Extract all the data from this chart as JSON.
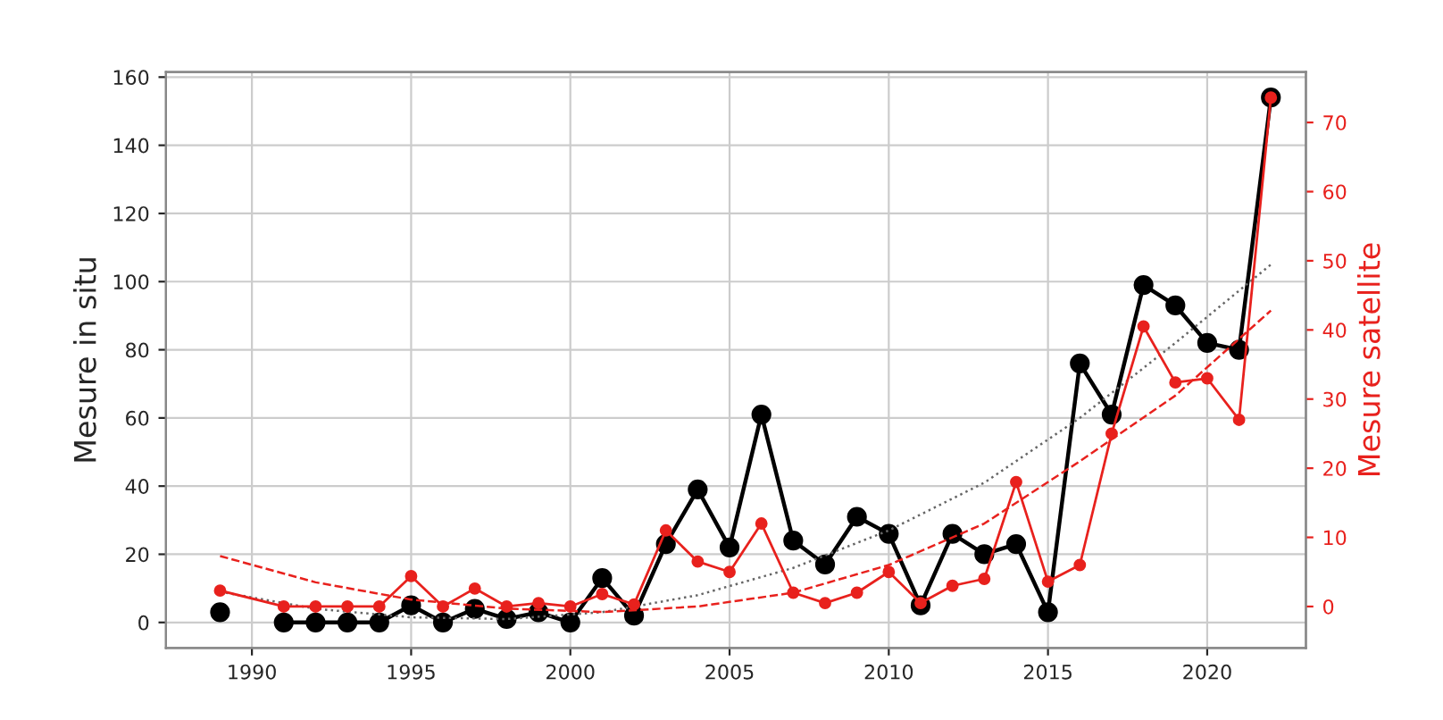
{
  "chart_data": {
    "type": "line",
    "ylabel": "Mesure in situ",
    "y2label": "Mesure satellite",
    "xlim": [
      1987.3,
      2023.1
    ],
    "xticks": [
      1990,
      1995,
      2000,
      2005,
      2010,
      2015,
      2020
    ],
    "ylim": [
      -7.5,
      161.5
    ],
    "yticks": [
      0,
      20,
      40,
      60,
      80,
      100,
      120,
      140,
      160
    ],
    "y2lim": [
      -6,
      77.3
    ],
    "y2ticks": [
      0,
      10,
      20,
      30,
      40,
      50,
      60,
      70
    ],
    "grid": true,
    "legend": false,
    "marker": "circle",
    "line_style": "solid",
    "series": [
      {
        "color": "#000000",
        "x": [
          1989,
          1990,
          1991,
          1992,
          1993,
          1994,
          1995,
          1996,
          1997,
          1998,
          1999,
          2000,
          2001,
          2002,
          2003,
          2004,
          2005,
          2006,
          2007,
          2008,
          2009,
          2010,
          2011,
          2012,
          2013,
          2014,
          2015,
          2016,
          2017,
          2018,
          2019,
          2020,
          2021,
          2022
        ],
        "values": [
          3,
          null,
          0,
          0,
          0,
          0,
          5,
          0,
          4,
          1,
          3,
          0,
          13,
          2,
          23,
          39,
          22,
          61,
          24,
          17,
          31,
          26,
          5,
          26,
          20,
          23,
          3,
          76,
          61,
          99,
          93,
          82,
          80,
          154
        ]
      },
      {
        "color": "#e8211d",
        "axis": "y2",
        "x": [
          1989,
          1991,
          1992,
          1993,
          1994,
          1995,
          1996,
          1997,
          1998,
          1999,
          2000,
          2001,
          2002,
          2003,
          2004,
          2005,
          2006,
          2007,
          2008,
          2009,
          2010,
          2011,
          2012,
          2013,
          2014,
          2015,
          2016,
          2017,
          2018,
          2019,
          2020,
          2021,
          2022
        ],
        "values": [
          2.3,
          0,
          0,
          0,
          0,
          4.4,
          0,
          2.6,
          0,
          0.5,
          0,
          1.8,
          0.3,
          11,
          6.5,
          5,
          12,
          2,
          0.5,
          2,
          5,
          0.5,
          3,
          4,
          18,
          3.6,
          6,
          25,
          40.5,
          32.4,
          33,
          27,
          73.6
        ]
      },
      {
        "color": "#666666",
        "marker": "none",
        "line_style": "dotted",
        "x": [
          1989,
          1992,
          1995,
          1998,
          2001,
          2004,
          2007,
          2010,
          2013,
          2016,
          2019,
          2022
        ],
        "values": [
          9,
          4,
          1.5,
          1,
          3,
          8,
          16,
          27,
          41,
          60,
          82,
          105
        ]
      },
      {
        "color": "#e8211d",
        "axis": "y2",
        "marker": "none",
        "line_style": "dashed",
        "x": [
          1989,
          1992,
          1995,
          1998,
          2001,
          2004,
          2007,
          2010,
          2013,
          2016,
          2019,
          2022
        ],
        "values": [
          7.3,
          3.5,
          1,
          -0.3,
          -0.8,
          0,
          2,
          6,
          12,
          21,
          30.5,
          42.8
        ]
      }
    ]
  }
}
